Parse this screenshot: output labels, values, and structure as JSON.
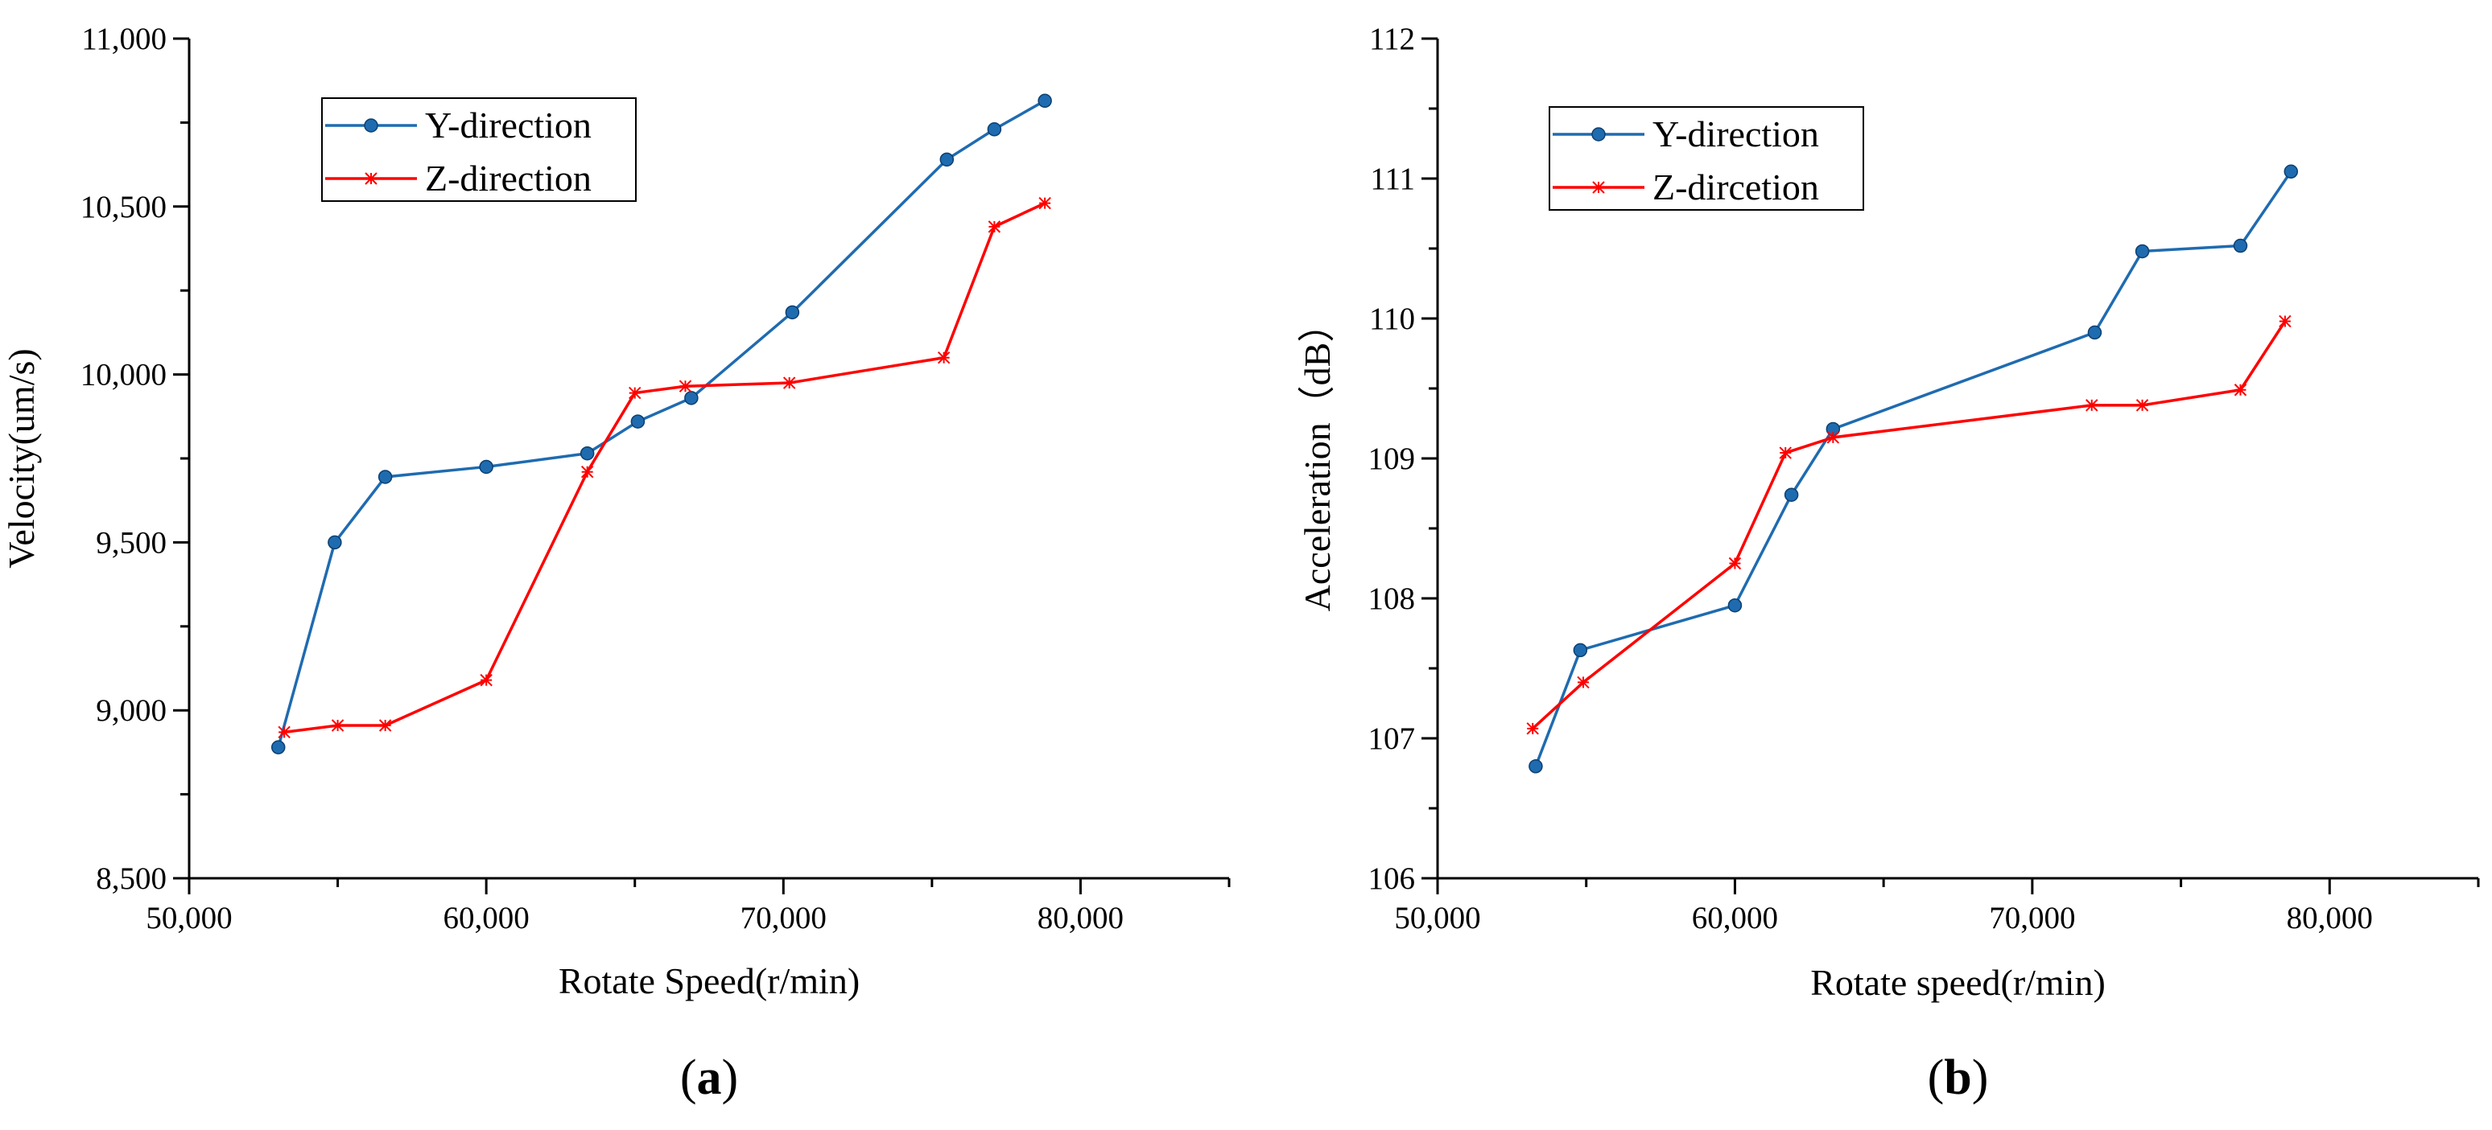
{
  "chart_data": [
    {
      "type": "line",
      "panel_label": "(a)",
      "panel_letter": "a",
      "xlabel": "Rotate Speed(r/min)",
      "ylabel": "Velocity(um/s)",
      "xlim": [
        50000,
        85000
      ],
      "ylim": [
        8500,
        11000
      ],
      "x_ticks": [
        50000,
        60000,
        70000,
        80000
      ],
      "x_tick_labels": [
        "50,000",
        "60,000",
        "70,000",
        "80,000"
      ],
      "y_ticks": [
        8500,
        9000,
        9500,
        10000,
        10500,
        11000
      ],
      "y_tick_labels": [
        "8,500",
        "9,000",
        "9,500",
        "10,000",
        "10,500",
        "11,000"
      ],
      "legend_position": "top-left",
      "series": [
        {
          "name": "Y-direction",
          "color": "#1f6bb0",
          "marker": "circle",
          "x": [
            53000,
            54900,
            56600,
            60000,
            63400,
            65100,
            66900,
            70300,
            75500,
            77100,
            78800
          ],
          "values": [
            8890,
            9500,
            9695,
            9725,
            9765,
            9860,
            9930,
            10185,
            10640,
            10730,
            10815
          ]
        },
        {
          "name": "Z-direction",
          "color": "#ff0000",
          "marker": "asterisk",
          "x": [
            53200,
            55000,
            56600,
            60000,
            63400,
            65000,
            66700,
            70200,
            75400,
            77100,
            78800
          ],
          "values": [
            8935,
            8955,
            8955,
            9090,
            9710,
            9945,
            9965,
            9975,
            10050,
            10440,
            10510
          ]
        }
      ]
    },
    {
      "type": "line",
      "panel_label": "(b)",
      "panel_letter": "b",
      "xlabel": "Rotate speed(r/min)",
      "ylabel": "Acceleration（dB）",
      "xlim": [
        50000,
        85000
      ],
      "ylim": [
        106,
        112
      ],
      "x_ticks": [
        50000,
        60000,
        70000,
        80000
      ],
      "x_tick_labels": [
        "50,000",
        "60,000",
        "70,000",
        "80,000"
      ],
      "y_ticks": [
        106,
        107,
        108,
        109,
        110,
        111,
        112
      ],
      "y_tick_labels": [
        "106",
        "107",
        "108",
        "109",
        "110",
        "111",
        "112"
      ],
      "legend_position": "top-left",
      "series": [
        {
          "name": "Y-direction",
          "color": "#1f6bb0",
          "marker": "circle",
          "x": [
            53300,
            54800,
            60000,
            61900,
            63300,
            72100,
            73700,
            77000,
            78700
          ],
          "values": [
            106.8,
            107.63,
            107.95,
            108.74,
            109.21,
            109.9,
            110.48,
            110.52,
            111.05
          ]
        },
        {
          "name": "Z-dircetion",
          "color": "#ff0000",
          "marker": "asterisk",
          "x": [
            53200,
            54900,
            60000,
            61700,
            63300,
            72000,
            73700,
            77000,
            78500
          ],
          "values": [
            107.07,
            107.4,
            108.25,
            109.04,
            109.15,
            109.38,
            109.38,
            109.49,
            109.98
          ]
        }
      ]
    }
  ]
}
